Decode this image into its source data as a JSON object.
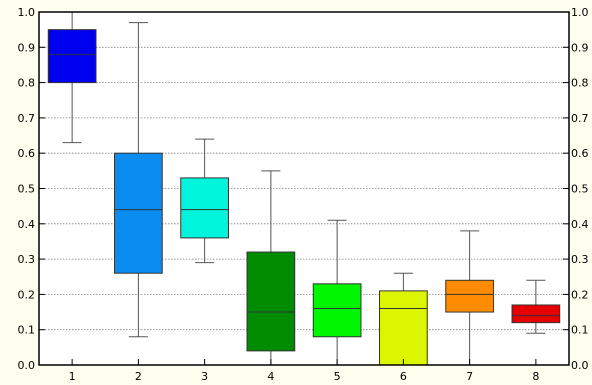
{
  "chart_data": {
    "type": "box",
    "title": "",
    "xlabel": "",
    "ylabel": "",
    "categories": [
      "1",
      "2",
      "3",
      "4",
      "5",
      "6",
      "7",
      "8"
    ],
    "ylim": [
      0.0,
      1.0
    ],
    "yticks": [
      "0.0",
      "0.1",
      "0.2",
      "0.3",
      "0.4",
      "0.5",
      "0.6",
      "0.7",
      "0.8",
      "0.9",
      "1.0"
    ],
    "yticks_right": [
      "0.0",
      "0.1",
      "0.2",
      "0.3",
      "0.4",
      "0.5",
      "0.6",
      "0.7",
      "0.8",
      "0.9",
      "1.0"
    ],
    "grid": true,
    "grid_style": "dotted-horizontal",
    "boxes": [
      {
        "category": "1",
        "whisker_low": 0.63,
        "q1": 0.8,
        "median": 0.88,
        "q3": 0.95,
        "whisker_high": 1.0,
        "color": "#0000f0"
      },
      {
        "category": "2",
        "whisker_low": 0.08,
        "q1": 0.26,
        "median": 0.44,
        "q3": 0.6,
        "whisker_high": 0.97,
        "color": "#0a8cf0"
      },
      {
        "category": "3",
        "whisker_low": 0.29,
        "q1": 0.36,
        "median": 0.44,
        "q3": 0.53,
        "whisker_high": 0.64,
        "color": "#00f5dc"
      },
      {
        "category": "4",
        "whisker_low": 0.0,
        "q1": 0.04,
        "median": 0.15,
        "q3": 0.32,
        "whisker_high": 0.55,
        "color": "#008c00"
      },
      {
        "category": "5",
        "whisker_low": 0.0,
        "q1": 0.08,
        "median": 0.16,
        "q3": 0.23,
        "whisker_high": 0.41,
        "color": "#00f500"
      },
      {
        "category": "6",
        "whisker_low": 0.0,
        "q1": 0.0,
        "median": 0.16,
        "q3": 0.21,
        "whisker_high": 0.26,
        "color": "#dcf500"
      },
      {
        "category": "7",
        "whisker_low": 0.0,
        "q1": 0.15,
        "median": 0.2,
        "q3": 0.24,
        "whisker_high": 0.38,
        "color": "#ff8c00"
      },
      {
        "category": "8",
        "whisker_low": 0.09,
        "q1": 0.12,
        "median": 0.14,
        "q3": 0.17,
        "whisker_high": 0.24,
        "color": "#e60000"
      }
    ],
    "colors": {
      "background": "#fffff0",
      "plot_background": "#ffffff",
      "axis": "#000000",
      "grid": "#808080"
    }
  }
}
